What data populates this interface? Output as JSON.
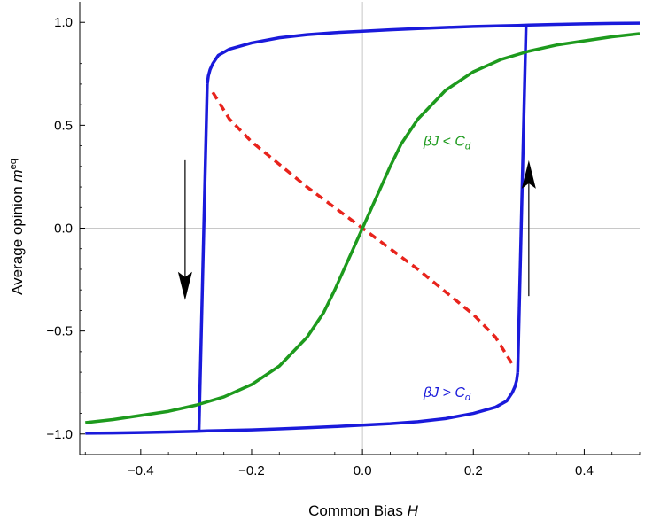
{
  "chart_data": {
    "type": "line",
    "xlabel": "Common Bias H",
    "xlabel_text": "Common Bias ",
    "xlabel_var": "H",
    "ylabel": "Average opinion m^eq",
    "ylabel_text": "Average opinion ",
    "ylabel_var": "m",
    "ylabel_sup": "eq",
    "xlim": [
      -0.51,
      0.5
    ],
    "ylim": [
      -1.1,
      1.1
    ],
    "x_ticks": [
      -0.4,
      -0.2,
      0.0,
      0.2,
      0.4
    ],
    "x_tick_labels": [
      "−0.4",
      "−0.2",
      "0.0",
      "0.2",
      "0.4"
    ],
    "y_ticks": [
      -1.0,
      -0.5,
      0.0,
      0.5,
      1.0
    ],
    "y_tick_labels": [
      "−1.0",
      "−0.5",
      "0.0",
      "0.5",
      "1.0"
    ],
    "grid": "axes through origin",
    "colors": {
      "upper_branch": "#1a1adb",
      "lower_branch": "#1a1adb",
      "unstable": "#e8231c",
      "subcritical": "#1d9a1d",
      "arrows": "#000000",
      "axes_lines": "#c8c8c8"
    },
    "series": [
      {
        "color": "blue",
        "style": "solid",
        "x": [
          -0.28,
          -0.278,
          -0.275,
          -0.27,
          -0.26,
          -0.24,
          -0.2,
          -0.15,
          -0.1,
          -0.05,
          0.0,
          0.05,
          0.1,
          0.15,
          0.2,
          0.25,
          0.28,
          0.3,
          0.35,
          0.4,
          0.45,
          0.5
        ],
        "y": [
          0.7,
          0.74,
          0.77,
          0.8,
          0.84,
          0.87,
          0.9,
          0.925,
          0.94,
          0.95,
          0.957,
          0.964,
          0.97,
          0.975,
          0.98,
          0.983,
          0.985,
          0.987,
          0.99,
          0.993,
          0.995,
          0.996
        ]
      },
      {
        "color": "blue",
        "style": "solid",
        "x": [
          -0.5,
          -0.45,
          -0.4,
          -0.35,
          -0.3,
          -0.28,
          -0.25,
          -0.2,
          -0.15,
          -0.1,
          -0.05,
          0.0,
          0.05,
          0.1,
          0.15,
          0.2,
          0.24,
          0.26,
          0.27,
          0.275,
          0.278,
          0.28
        ],
        "y": [
          -0.996,
          -0.995,
          -0.993,
          -0.99,
          -0.987,
          -0.985,
          -0.983,
          -0.98,
          -0.975,
          -0.97,
          -0.964,
          -0.957,
          -0.95,
          -0.94,
          -0.925,
          -0.9,
          -0.87,
          -0.84,
          -0.8,
          -0.77,
          -0.74,
          -0.7
        ]
      },
      {
        "color": "blue",
        "style": "solid",
        "x": [
          -0.28,
          -0.295
        ],
        "y": [
          0.7,
          -0.985
        ]
      },
      {
        "color": "blue",
        "style": "solid",
        "x": [
          0.28,
          0.295
        ],
        "y": [
          -0.7,
          0.985
        ]
      },
      {
        "color": "red",
        "style": "dashed",
        "x": [
          -0.27,
          -0.24,
          -0.2,
          -0.15,
          -0.1,
          -0.05,
          0.0,
          0.05,
          0.1,
          0.15,
          0.2,
          0.24,
          0.27
        ],
        "y": [
          0.66,
          0.53,
          0.42,
          0.31,
          0.2,
          0.1,
          0.0,
          -0.1,
          -0.2,
          -0.31,
          -0.42,
          -0.53,
          -0.66
        ]
      },
      {
        "color": "green",
        "style": "solid",
        "x": [
          -0.5,
          -0.45,
          -0.4,
          -0.35,
          -0.3,
          -0.25,
          -0.2,
          -0.15,
          -0.1,
          -0.07,
          -0.05,
          -0.03,
          0.0,
          0.03,
          0.05,
          0.07,
          0.1,
          0.15,
          0.2,
          0.25,
          0.3,
          0.35,
          0.4,
          0.45,
          0.5
        ],
        "y": [
          -0.945,
          -0.93,
          -0.91,
          -0.89,
          -0.86,
          -0.82,
          -0.76,
          -0.67,
          -0.53,
          -0.41,
          -0.3,
          -0.18,
          0.0,
          0.18,
          0.3,
          0.41,
          0.53,
          0.67,
          0.76,
          0.82,
          0.86,
          0.89,
          0.91,
          0.93,
          0.945
        ]
      }
    ],
    "arrows": [
      {
        "direction": "down",
        "x": -0.32,
        "y_from": 0.33,
        "y_to": -0.35
      },
      {
        "direction": "up",
        "x": 0.3,
        "y_from": -0.33,
        "y_to": 0.33
      }
    ],
    "annotations": [
      {
        "text": "βJ < ",
        "var": "C",
        "sub": "d",
        "color": "#1d9a1d",
        "x": 0.11,
        "y": 0.4
      },
      {
        "text": "βJ > ",
        "var": "C",
        "sub": "d",
        "color": "#1a1adb",
        "x": 0.11,
        "y": -0.82
      }
    ]
  }
}
